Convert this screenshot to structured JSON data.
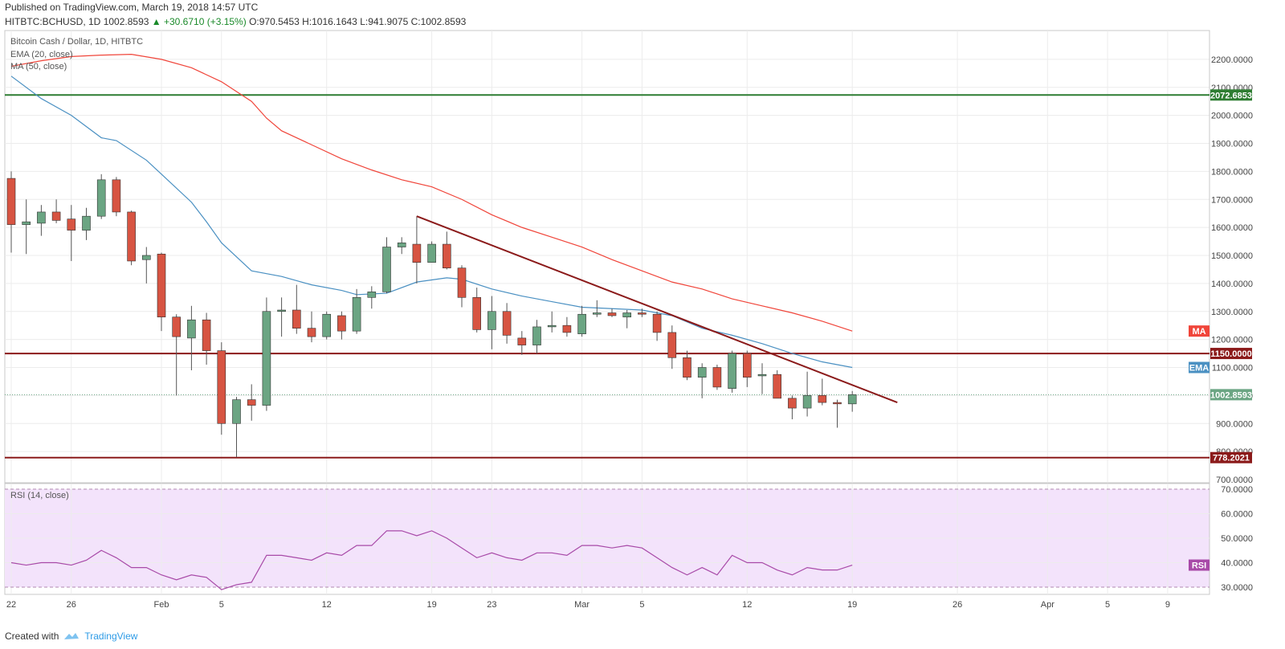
{
  "header": {
    "published": "Published on TradingView.com, March 19, 2018 14:57 UTC",
    "symbol": "HITBTC:BCHUSD, 1D",
    "last": "1002.8593",
    "change": "▲ +30.6710 (+3.15%)",
    "ohlc": "O:970.5453 H:1016.1643 L:941.9075 C:1002.8593"
  },
  "legend": {
    "title": "Bitcoin Cash / Dollar, 1D, HITBTC",
    "ema": "EMA (20, close)",
    "ma": "MA (50, close)",
    "rsi": "RSI (14, close)"
  },
  "footer": {
    "created_with": "Created with",
    "brand": "TradingView"
  },
  "colors": {
    "up": "#6ba583",
    "down": "#d75442",
    "ema": "#4a90c2",
    "ma": "#f0453a",
    "rsi": "#a84aa8",
    "support": "#8b1a1a",
    "resistance_green": "#2e7d32"
  },
  "chart_data": [
    {
      "type": "candlestick",
      "title": "Bitcoin Cash / Dollar, 1D, HITBTC",
      "ylim": [
        700,
        2300
      ],
      "y_ticks": [
        "2200.0000",
        "2100.0000",
        "2000.0000",
        "1900.0000",
        "1800.0000",
        "1700.0000",
        "1600.0000",
        "1500.0000",
        "1400.0000",
        "1300.0000",
        "1200.0000",
        "1100.0000",
        "1000.0000",
        "900.0000",
        "800.0000",
        "700.0000"
      ],
      "y_tick_values": [
        2200,
        2100,
        2000,
        1900,
        1800,
        1700,
        1600,
        1500,
        1400,
        1300,
        1200,
        1100,
        1000,
        900,
        800,
        700
      ],
      "x_tick_labels": [
        "22",
        "26",
        "Feb",
        "5",
        "12",
        "19",
        "23",
        "Mar",
        "5",
        "12",
        "19",
        "26",
        "Apr",
        "5",
        "9"
      ],
      "x_tick_days": [
        0,
        4,
        10,
        14,
        21,
        28,
        32,
        38,
        42,
        49,
        56,
        63,
        69,
        73,
        77
      ],
      "candles": [
        {
          "d": 0,
          "o": 1775,
          "h": 1800,
          "l": 1510,
          "c": 1610
        },
        {
          "d": 1,
          "o": 1610,
          "h": 1700,
          "l": 1505,
          "c": 1620
        },
        {
          "d": 2,
          "o": 1615,
          "h": 1680,
          "l": 1570,
          "c": 1655
        },
        {
          "d": 3,
          "o": 1655,
          "h": 1700,
          "l": 1615,
          "c": 1625
        },
        {
          "d": 4,
          "o": 1630,
          "h": 1680,
          "l": 1480,
          "c": 1590
        },
        {
          "d": 5,
          "o": 1590,
          "h": 1670,
          "l": 1555,
          "c": 1640
        },
        {
          "d": 6,
          "o": 1640,
          "h": 1790,
          "l": 1630,
          "c": 1770
        },
        {
          "d": 7,
          "o": 1770,
          "h": 1780,
          "l": 1640,
          "c": 1655
        },
        {
          "d": 8,
          "o": 1655,
          "h": 1660,
          "l": 1465,
          "c": 1480
        },
        {
          "d": 9,
          "o": 1485,
          "h": 1530,
          "l": 1400,
          "c": 1500
        },
        {
          "d": 10,
          "o": 1505,
          "h": 1510,
          "l": 1230,
          "c": 1280
        },
        {
          "d": 11,
          "o": 1280,
          "h": 1290,
          "l": 1000,
          "c": 1210
        },
        {
          "d": 12,
          "o": 1205,
          "h": 1320,
          "l": 1090,
          "c": 1270
        },
        {
          "d": 13,
          "o": 1270,
          "h": 1295,
          "l": 1110,
          "c": 1160
        },
        {
          "d": 14,
          "o": 1160,
          "h": 1190,
          "l": 860,
          "c": 900
        },
        {
          "d": 15,
          "o": 900,
          "h": 995,
          "l": 780,
          "c": 985
        },
        {
          "d": 16,
          "o": 985,
          "h": 1040,
          "l": 910,
          "c": 965
        },
        {
          "d": 17,
          "o": 965,
          "h": 1350,
          "l": 945,
          "c": 1300
        },
        {
          "d": 18,
          "o": 1300,
          "h": 1350,
          "l": 1210,
          "c": 1305
        },
        {
          "d": 19,
          "o": 1305,
          "h": 1395,
          "l": 1220,
          "c": 1240
        },
        {
          "d": 20,
          "o": 1240,
          "h": 1300,
          "l": 1190,
          "c": 1210
        },
        {
          "d": 21,
          "o": 1210,
          "h": 1300,
          "l": 1200,
          "c": 1290
        },
        {
          "d": 22,
          "o": 1285,
          "h": 1300,
          "l": 1200,
          "c": 1230
        },
        {
          "d": 23,
          "o": 1230,
          "h": 1380,
          "l": 1220,
          "c": 1350
        },
        {
          "d": 24,
          "o": 1350,
          "h": 1390,
          "l": 1310,
          "c": 1370
        },
        {
          "d": 25,
          "o": 1370,
          "h": 1565,
          "l": 1365,
          "c": 1530
        },
        {
          "d": 26,
          "o": 1530,
          "h": 1565,
          "l": 1505,
          "c": 1545
        },
        {
          "d": 27,
          "o": 1540,
          "h": 1640,
          "l": 1400,
          "c": 1475
        },
        {
          "d": 28,
          "o": 1475,
          "h": 1550,
          "l": 1475,
          "c": 1540
        },
        {
          "d": 29,
          "o": 1540,
          "h": 1585,
          "l": 1450,
          "c": 1455
        },
        {
          "d": 30,
          "o": 1455,
          "h": 1465,
          "l": 1315,
          "c": 1350
        },
        {
          "d": 31,
          "o": 1350,
          "h": 1385,
          "l": 1225,
          "c": 1235
        },
        {
          "d": 32,
          "o": 1235,
          "h": 1355,
          "l": 1165,
          "c": 1300
        },
        {
          "d": 33,
          "o": 1300,
          "h": 1330,
          "l": 1185,
          "c": 1215
        },
        {
          "d": 34,
          "o": 1205,
          "h": 1230,
          "l": 1145,
          "c": 1180
        },
        {
          "d": 35,
          "o": 1180,
          "h": 1270,
          "l": 1150,
          "c": 1245
        },
        {
          "d": 36,
          "o": 1245,
          "h": 1300,
          "l": 1225,
          "c": 1250
        },
        {
          "d": 37,
          "o": 1250,
          "h": 1280,
          "l": 1210,
          "c": 1225
        },
        {
          "d": 38,
          "o": 1220,
          "h": 1320,
          "l": 1210,
          "c": 1290
        },
        {
          "d": 39,
          "o": 1290,
          "h": 1340,
          "l": 1280,
          "c": 1295
        },
        {
          "d": 40,
          "o": 1295,
          "h": 1310,
          "l": 1280,
          "c": 1285
        },
        {
          "d": 41,
          "o": 1280,
          "h": 1305,
          "l": 1240,
          "c": 1295
        },
        {
          "d": 42,
          "o": 1295,
          "h": 1310,
          "l": 1280,
          "c": 1290
        },
        {
          "d": 43,
          "o": 1290,
          "h": 1300,
          "l": 1195,
          "c": 1225
        },
        {
          "d": 44,
          "o": 1225,
          "h": 1250,
          "l": 1095,
          "c": 1135
        },
        {
          "d": 45,
          "o": 1135,
          "h": 1160,
          "l": 1055,
          "c": 1065
        },
        {
          "d": 46,
          "o": 1065,
          "h": 1115,
          "l": 990,
          "c": 1100
        },
        {
          "d": 47,
          "o": 1100,
          "h": 1110,
          "l": 1020,
          "c": 1030
        },
        {
          "d": 48,
          "o": 1025,
          "h": 1160,
          "l": 1010,
          "c": 1150
        },
        {
          "d": 49,
          "o": 1150,
          "h": 1160,
          "l": 1030,
          "c": 1065
        },
        {
          "d": 50,
          "o": 1070,
          "h": 1115,
          "l": 1005,
          "c": 1075
        },
        {
          "d": 51,
          "o": 1075,
          "h": 1090,
          "l": 990,
          "c": 990
        },
        {
          "d": 52,
          "o": 990,
          "h": 1000,
          "l": 915,
          "c": 955
        },
        {
          "d": 53,
          "o": 955,
          "h": 1085,
          "l": 925,
          "c": 1000
        },
        {
          "d": 54,
          "o": 1000,
          "h": 1060,
          "l": 965,
          "c": 975
        },
        {
          "d": 55,
          "o": 975,
          "h": 985,
          "l": 885,
          "c": 970
        },
        {
          "d": 56,
          "o": 970,
          "h": 1016,
          "l": 942,
          "c": 1003
        }
      ],
      "ema_20": [
        [
          0,
          2140
        ],
        [
          2,
          2060
        ],
        [
          4,
          2000
        ],
        [
          6,
          1920
        ],
        [
          7,
          1910
        ],
        [
          9,
          1840
        ],
        [
          10,
          1790
        ],
        [
          12,
          1690
        ],
        [
          13,
          1620
        ],
        [
          14,
          1545
        ],
        [
          16,
          1445
        ],
        [
          18,
          1425
        ],
        [
          20,
          1395
        ],
        [
          22,
          1375
        ],
        [
          23,
          1360
        ],
        [
          25,
          1365
        ],
        [
          27,
          1405
        ],
        [
          29,
          1420
        ],
        [
          30,
          1415
        ],
        [
          32,
          1380
        ],
        [
          34,
          1355
        ],
        [
          36,
          1335
        ],
        [
          38,
          1315
        ],
        [
          40,
          1310
        ],
        [
          42,
          1305
        ],
        [
          44,
          1285
        ],
        [
          46,
          1240
        ],
        [
          48,
          1215
        ],
        [
          50,
          1185
        ],
        [
          52,
          1150
        ],
        [
          54,
          1120
        ],
        [
          56,
          1100
        ]
      ],
      "ma_50": [
        [
          0,
          2175
        ],
        [
          2,
          2195
        ],
        [
          4,
          2210
        ],
        [
          6,
          2215
        ],
        [
          8,
          2218
        ],
        [
          10,
          2200
        ],
        [
          12,
          2170
        ],
        [
          14,
          2120
        ],
        [
          16,
          2050
        ],
        [
          17,
          1990
        ],
        [
          18,
          1945
        ],
        [
          20,
          1895
        ],
        [
          22,
          1845
        ],
        [
          24,
          1805
        ],
        [
          26,
          1770
        ],
        [
          28,
          1745
        ],
        [
          30,
          1700
        ],
        [
          32,
          1645
        ],
        [
          34,
          1600
        ],
        [
          36,
          1565
        ],
        [
          38,
          1530
        ],
        [
          40,
          1485
        ],
        [
          42,
          1445
        ],
        [
          44,
          1405
        ],
        [
          46,
          1380
        ],
        [
          48,
          1345
        ],
        [
          50,
          1320
        ],
        [
          52,
          1295
        ],
        [
          54,
          1265
        ],
        [
          56,
          1230
        ]
      ],
      "trendline": [
        [
          27,
          1640
        ],
        [
          59,
          975
        ]
      ],
      "horizontal_levels": [
        {
          "label": "2072.6853",
          "value": 2072.6853,
          "color": "#2e7d32"
        },
        {
          "label": "1150.0000",
          "value": 1150,
          "color": "#8b1a1a"
        },
        {
          "label": "778.2021",
          "value": 778.2021,
          "color": "#8b1a1a"
        }
      ],
      "last_price_label": "1002.8593",
      "last_price": 1002.8593,
      "indicator_tags": [
        {
          "label": "MA",
          "value": 1230,
          "color": "#f0453a"
        },
        {
          "label": "EMA",
          "value": 1100,
          "color": "#4a90c2"
        }
      ]
    },
    {
      "type": "line",
      "title": "RSI (14, close)",
      "ylim": [
        27,
        72
      ],
      "y_ticks": [
        "70.0000",
        "60.0000",
        "50.0000",
        "40.0000",
        "30.0000"
      ],
      "y_tick_values": [
        70,
        60,
        50,
        40,
        30
      ],
      "band": [
        30,
        70
      ],
      "tag": "RSI",
      "rsi": [
        [
          0,
          40
        ],
        [
          1,
          39
        ],
        [
          2,
          40
        ],
        [
          3,
          40
        ],
        [
          4,
          39
        ],
        [
          5,
          41
        ],
        [
          6,
          45
        ],
        [
          7,
          42
        ],
        [
          8,
          38
        ],
        [
          9,
          38
        ],
        [
          10,
          35
        ],
        [
          11,
          33
        ],
        [
          12,
          35
        ],
        [
          13,
          34
        ],
        [
          14,
          29
        ],
        [
          15,
          31
        ],
        [
          16,
          32
        ],
        [
          17,
          43
        ],
        [
          18,
          43
        ],
        [
          19,
          42
        ],
        [
          20,
          41
        ],
        [
          21,
          44
        ],
        [
          22,
          43
        ],
        [
          23,
          47
        ],
        [
          24,
          47
        ],
        [
          25,
          53
        ],
        [
          26,
          53
        ],
        [
          27,
          51
        ],
        [
          28,
          53
        ],
        [
          29,
          50
        ],
        [
          30,
          46
        ],
        [
          31,
          42
        ],
        [
          32,
          44
        ],
        [
          33,
          42
        ],
        [
          34,
          41
        ],
        [
          35,
          44
        ],
        [
          36,
          44
        ],
        [
          37,
          43
        ],
        [
          38,
          47
        ],
        [
          39,
          47
        ],
        [
          40,
          46
        ],
        [
          41,
          47
        ],
        [
          42,
          46
        ],
        [
          43,
          42
        ],
        [
          44,
          38
        ],
        [
          45,
          35
        ],
        [
          46,
          38
        ],
        [
          47,
          35
        ],
        [
          48,
          43
        ],
        [
          49,
          40
        ],
        [
          50,
          40
        ],
        [
          51,
          37
        ],
        [
          52,
          35
        ],
        [
          53,
          38
        ],
        [
          54,
          37
        ],
        [
          55,
          37
        ],
        [
          56,
          39
        ]
      ]
    }
  ]
}
